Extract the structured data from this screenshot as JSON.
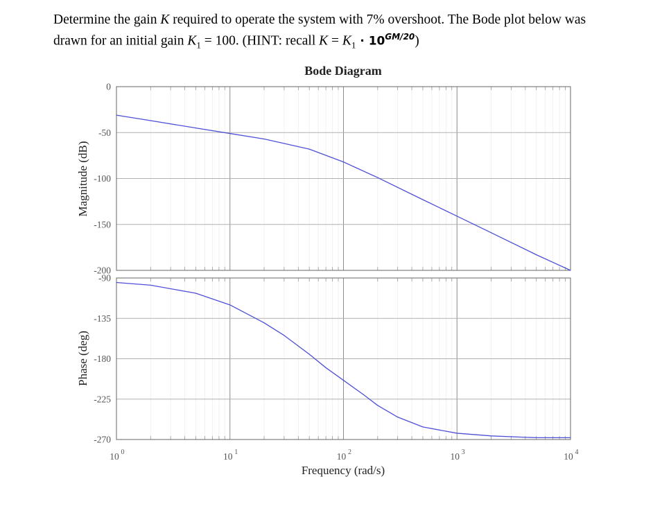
{
  "question": {
    "line1_a": "Determine the gain ",
    "line1_k": "K",
    "line1_b": " required to operate the system with 7% overshoot. The Bode plot below was",
    "line2_a": "drawn for an initial gain ",
    "line2_k1": "K",
    "line2_k1_sub": "1",
    "line2_eq": " = 100. (HINT: recall ",
    "line2_k": "K",
    "line2_eq2": " = ",
    "line2_k1b": "K",
    "line2_k1b_sub": "1",
    "line2_dot": " · 10",
    "line2_exp": "GM/20",
    "line2_end": ")"
  },
  "chart_data": {
    "type": "line",
    "title": "Bode Diagram",
    "xlabel": "Frequency  (rad/s)",
    "xscale": "log",
    "xlim": [
      1,
      10000
    ],
    "x_tick_labels": [
      {
        "base": "10",
        "exp": "0"
      },
      {
        "base": "10",
        "exp": "1"
      },
      {
        "base": "10",
        "exp": "2"
      },
      {
        "base": "10",
        "exp": "3"
      },
      {
        "base": "10",
        "exp": "4"
      }
    ],
    "grid": true,
    "line_color": "#4f4fd8",
    "panels": [
      {
        "name": "magnitude",
        "ylabel": "Magnitude (dB)",
        "ylim": [
          -200,
          0
        ],
        "y_ticks": [
          0,
          -50,
          -100,
          -150,
          -200
        ],
        "y_tick_labels": [
          "0",
          "-50",
          "-100",
          "-150",
          "-200"
        ],
        "x": [
          1,
          2,
          5,
          10,
          20,
          50,
          100,
          200,
          500,
          1000,
          2000,
          5000,
          10000
        ],
        "y": [
          -31,
          -37,
          -45,
          -51,
          -57,
          -68,
          -82,
          -99,
          -123,
          -141,
          -159,
          -183,
          -200
        ]
      },
      {
        "name": "phase",
        "ylabel": "Phase (deg)",
        "ylim": [
          -270,
          -90
        ],
        "y_ticks": [
          -90,
          -135,
          -180,
          -225,
          -270
        ],
        "y_tick_labels": [
          "-90",
          "-135",
          "-180",
          "-225",
          "-270"
        ],
        "x": [
          1,
          2,
          5,
          10,
          20,
          30,
          50,
          70,
          100,
          150,
          200,
          300,
          500,
          1000,
          2000,
          5000,
          10000
        ],
        "y": [
          -95,
          -98,
          -107,
          -120,
          -140,
          -154,
          -175,
          -190,
          -204,
          -220,
          -232,
          -245,
          -256,
          -263,
          -266,
          -268,
          -268
        ]
      }
    ]
  }
}
